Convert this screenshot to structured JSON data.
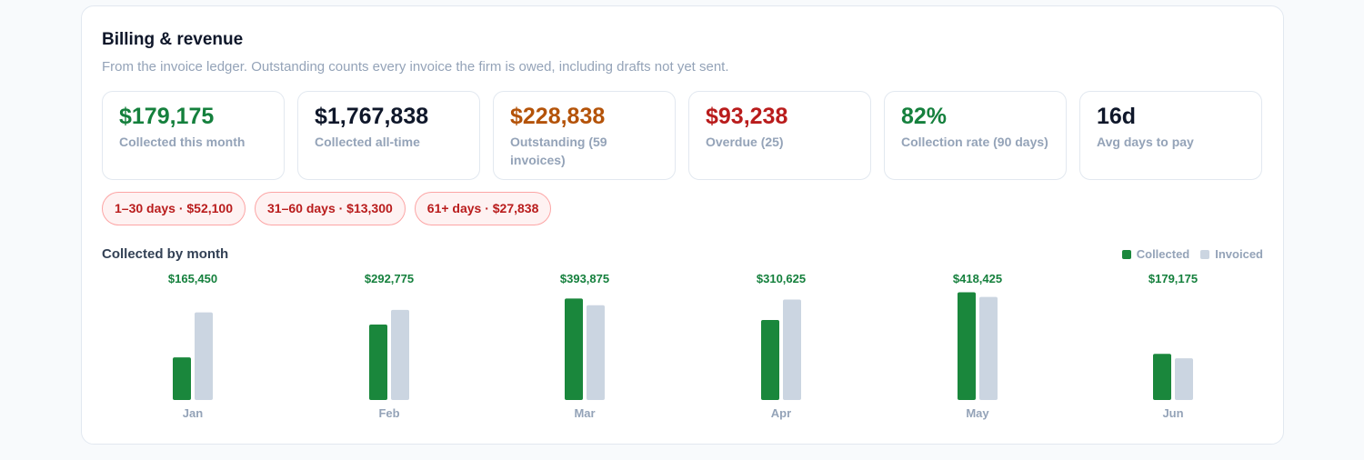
{
  "header": {
    "title": "Billing & revenue",
    "subtitle": "From the invoice ledger. Outstanding counts every invoice the firm is owed, including drafts not yet sent."
  },
  "stats": [
    {
      "value": "$179,175",
      "label": "Collected this month",
      "color": "#15803d"
    },
    {
      "value": "$1,767,838",
      "label": "Collected all-time",
      "color": "#0f172a"
    },
    {
      "value": "$228,838",
      "label": "Outstanding (59 invoices)",
      "color": "#b45309"
    },
    {
      "value": "$93,238",
      "label": "Overdue (25)",
      "color": "#b91c1c"
    },
    {
      "value": "82%",
      "label": "Collection rate (90 days)",
      "color": "#15803d"
    },
    {
      "value": "16d",
      "label": "Avg days to pay",
      "color": "#0f172a"
    }
  ],
  "aging": [
    "1–30 days · $52,100",
    "31–60 days · $13,300",
    "61+ days · $27,838"
  ],
  "chart": {
    "title": "Collected by month",
    "legend": {
      "collected": "Collected",
      "invoiced": "Invoiced"
    }
  },
  "colors": {
    "collected": "#1a873c",
    "invoiced": "#cbd5e1",
    "value_label": "#15803d",
    "axis_label": "#94a3b8"
  },
  "chart_data": {
    "type": "bar",
    "categories": [
      "Jan",
      "Feb",
      "Mar",
      "Apr",
      "May",
      "Jun"
    ],
    "series": [
      {
        "name": "Collected",
        "values": [
          165450,
          292775,
          393875,
          310625,
          418425,
          179175
        ]
      },
      {
        "name": "Invoiced",
        "values": [
          340000,
          350000,
          368000,
          390000,
          400000,
          162000
        ]
      }
    ],
    "value_labels": [
      "$165,450",
      "$292,775",
      "$393,875",
      "$310,625",
      "$418,425",
      "$179,175"
    ],
    "ylim": [
      0,
      420000
    ],
    "legend_position": "top-right",
    "grid": false
  }
}
